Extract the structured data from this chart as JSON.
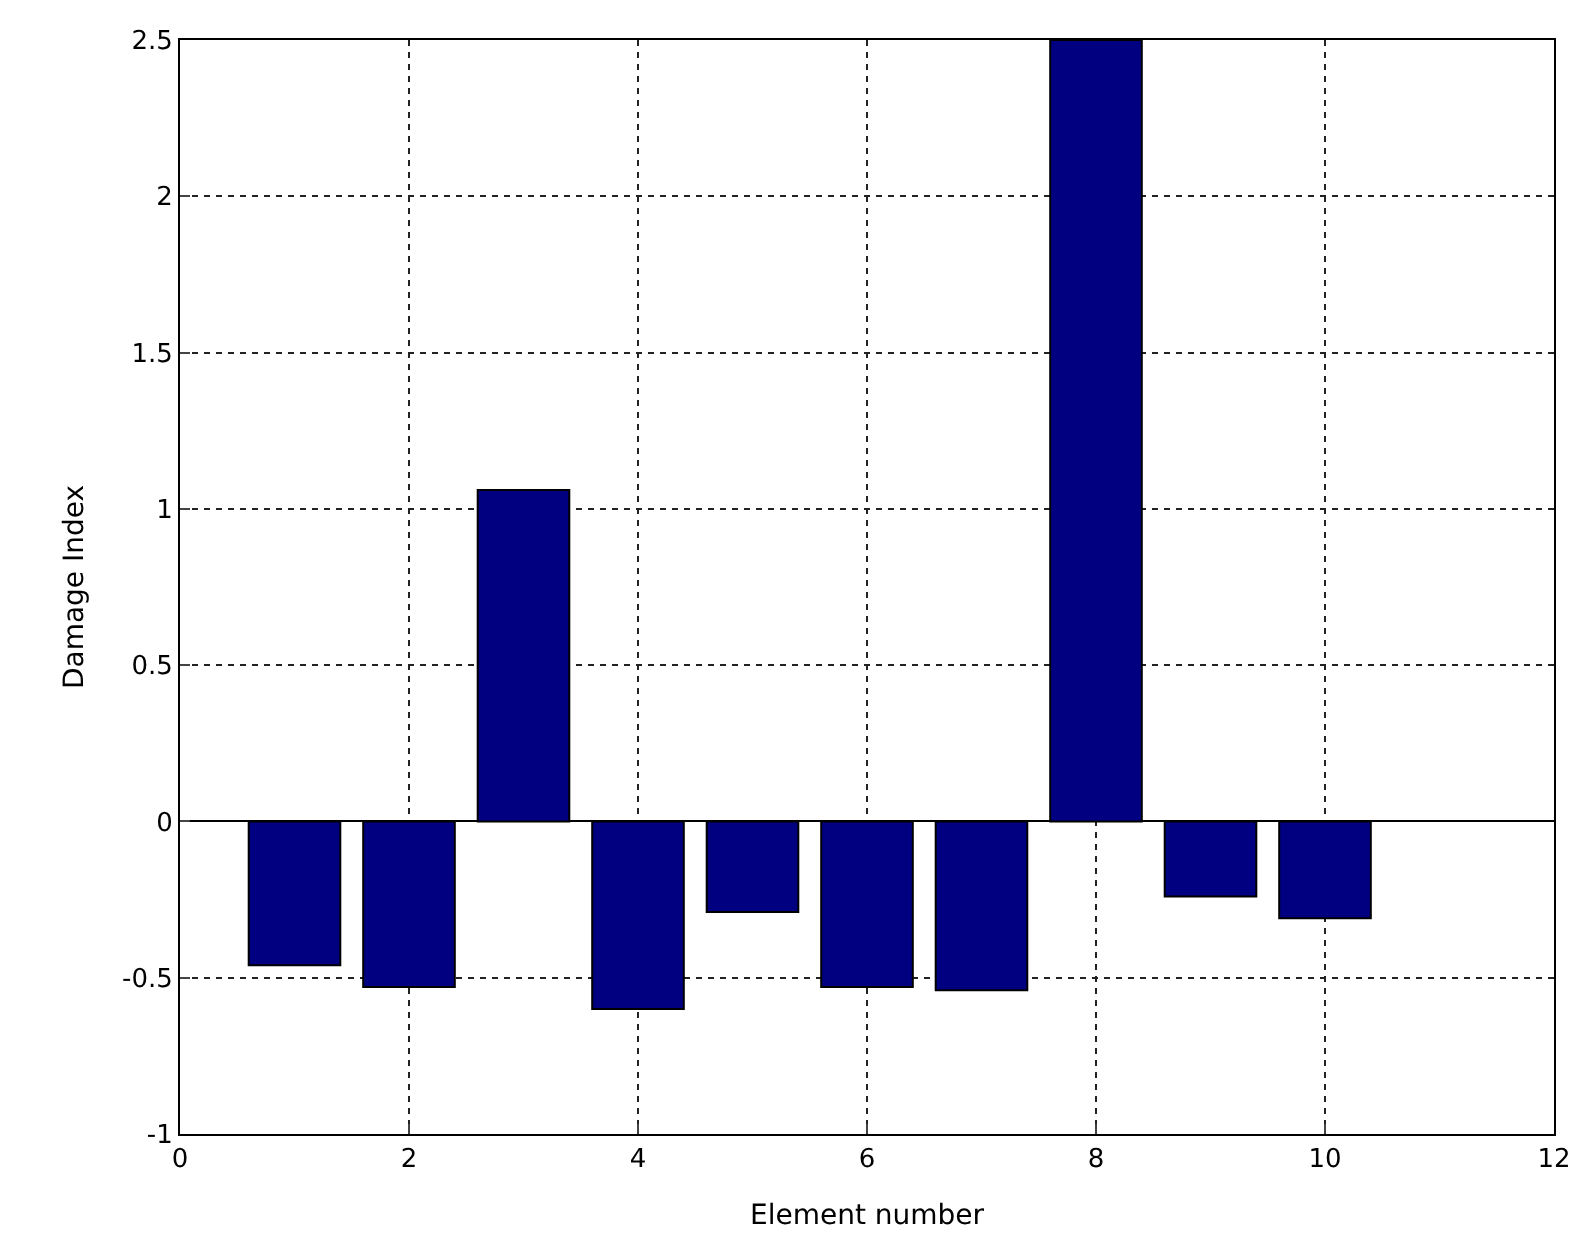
{
  "chart_data": {
    "type": "bar",
    "xlabel": "Element number",
    "ylabel": "Damage Index",
    "x": [
      1,
      2,
      3,
      4,
      5,
      6,
      7,
      8,
      9,
      10
    ],
    "values": [
      -0.46,
      -0.53,
      1.06,
      -0.6,
      -0.29,
      -0.53,
      -0.54,
      2.5,
      -0.24,
      -0.31
    ],
    "color": "#000080",
    "xlim": [
      0,
      12
    ],
    "xticks": [
      0,
      2,
      4,
      6,
      8,
      10,
      12
    ],
    "ylim": [
      -1,
      2.5
    ],
    "yticks": [
      -1,
      -0.5,
      0,
      0.5,
      1,
      1.5,
      2,
      2.5
    ],
    "grid": true
  }
}
